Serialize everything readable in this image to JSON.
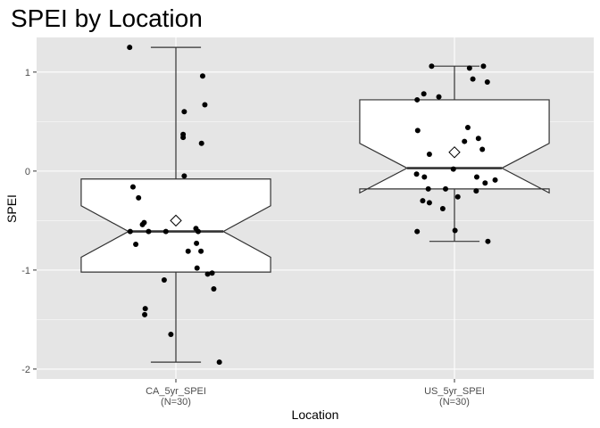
{
  "chart_data": {
    "type": "boxplot",
    "title": "SPEI by Location",
    "xlabel": "Location",
    "ylabel": "SPEI",
    "ylim": [
      -2.1,
      1.35
    ],
    "yticks": [
      -2,
      -1,
      0,
      1
    ],
    "ytick_labels": [
      "-2",
      "-1",
      "0",
      "1"
    ],
    "grid": true,
    "notched": true,
    "mean_marker": "open-diamond",
    "colors": {
      "panel": "#e5e5e5",
      "grid": "#ffffff",
      "box_fill": "#ffffff",
      "line": "#333333",
      "point": "#000000"
    },
    "categories": [
      {
        "label": "CA_5yr_SPEI",
        "n_label": "(N=30)",
        "whisker_low": -1.93,
        "q1": -1.02,
        "median": -0.61,
        "q3": -0.08,
        "whisker_high": 1.25,
        "notch_low": -0.35,
        "notch_high": -0.87,
        "mean": -0.5,
        "points": [
          {
            "x": -0.83,
            "y": 1.25
          },
          {
            "x": 0.48,
            "y": 0.96
          },
          {
            "x": 0.52,
            "y": 0.67
          },
          {
            "x": 0.15,
            "y": 0.6
          },
          {
            "x": 0.13,
            "y": 0.37
          },
          {
            "x": 0.13,
            "y": 0.34
          },
          {
            "x": 0.46,
            "y": 0.28
          },
          {
            "x": 0.15,
            "y": -0.05
          },
          {
            "x": -0.77,
            "y": -0.16
          },
          {
            "x": -0.67,
            "y": -0.27
          },
          {
            "x": -0.6,
            "y": -0.54
          },
          {
            "x": -0.57,
            "y": -0.52
          },
          {
            "x": -0.82,
            "y": -0.61
          },
          {
            "x": -0.49,
            "y": -0.61
          },
          {
            "x": -0.18,
            "y": -0.61
          },
          {
            "x": 0.36,
            "y": -0.58
          },
          {
            "x": 0.4,
            "y": -0.61
          },
          {
            "x": -0.72,
            "y": -0.74
          },
          {
            "x": 0.37,
            "y": -0.73
          },
          {
            "x": 0.22,
            "y": -0.81
          },
          {
            "x": 0.45,
            "y": -0.81
          },
          {
            "x": 0.38,
            "y": -0.98
          },
          {
            "x": 0.57,
            "y": -1.04
          },
          {
            "x": 0.65,
            "y": -1.03
          },
          {
            "x": -0.21,
            "y": -1.1
          },
          {
            "x": 0.68,
            "y": -1.19
          },
          {
            "x": -0.55,
            "y": -1.39
          },
          {
            "x": -0.56,
            "y": -1.45
          },
          {
            "x": -0.09,
            "y": -1.65
          },
          {
            "x": 0.78,
            "y": -1.93
          }
        ]
      },
      {
        "label": "US_5yr_SPEI",
        "n_label": "(N=30)",
        "whisker_low": -0.71,
        "q1": -0.18,
        "median": 0.03,
        "q3": 0.72,
        "whisker_high": 1.06,
        "notch_low": 0.28,
        "notch_high": -0.22,
        "mean": 0.19,
        "points": [
          {
            "x": -0.41,
            "y": 1.06
          },
          {
            "x": 0.27,
            "y": 1.04
          },
          {
            "x": 0.52,
            "y": 1.06
          },
          {
            "x": 0.33,
            "y": 0.93
          },
          {
            "x": 0.59,
            "y": 0.9
          },
          {
            "x": -0.55,
            "y": 0.78
          },
          {
            "x": -0.67,
            "y": 0.72
          },
          {
            "x": -0.28,
            "y": 0.75
          },
          {
            "x": -0.66,
            "y": 0.41
          },
          {
            "x": 0.24,
            "y": 0.44
          },
          {
            "x": 0.43,
            "y": 0.33
          },
          {
            "x": 0.18,
            "y": 0.3
          },
          {
            "x": 0.5,
            "y": 0.22
          },
          {
            "x": -0.45,
            "y": 0.17
          },
          {
            "x": -0.02,
            "y": 0.02
          },
          {
            "x": -0.68,
            "y": -0.03
          },
          {
            "x": -0.54,
            "y": -0.06
          },
          {
            "x": 0.4,
            "y": -0.06
          },
          {
            "x": 0.73,
            "y": -0.09
          },
          {
            "x": 0.55,
            "y": -0.12
          },
          {
            "x": -0.47,
            "y": -0.18
          },
          {
            "x": -0.16,
            "y": -0.18
          },
          {
            "x": 0.39,
            "y": -0.2
          },
          {
            "x": 0.06,
            "y": -0.26
          },
          {
            "x": -0.57,
            "y": -0.3
          },
          {
            "x": -0.45,
            "y": -0.32
          },
          {
            "x": -0.21,
            "y": -0.38
          },
          {
            "x": -0.67,
            "y": -0.61
          },
          {
            "x": 0.6,
            "y": -0.71
          },
          {
            "x": 0.01,
            "y": -0.6
          }
        ]
      }
    ]
  }
}
